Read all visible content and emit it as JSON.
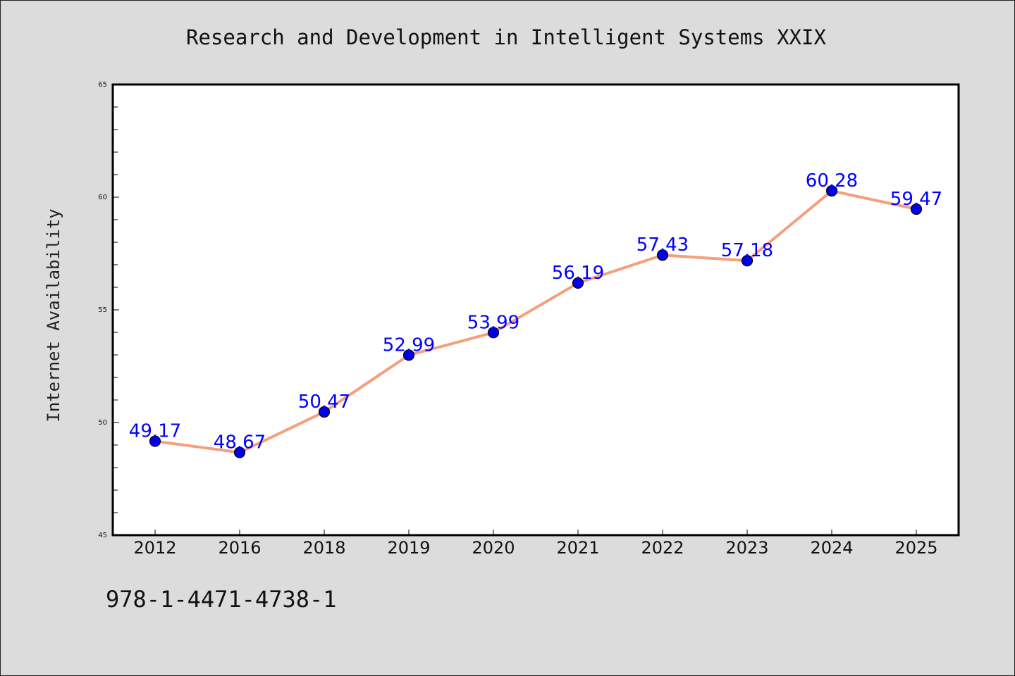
{
  "chart_data": {
    "type": "line",
    "title": "Research and Development in Intelligent Systems XXIX",
    "xlabel": "",
    "ylabel": "Internet Availability",
    "categories": [
      "2012",
      "2016",
      "2018",
      "2019",
      "2020",
      "2021",
      "2022",
      "2023",
      "2024",
      "2025"
    ],
    "values": [
      49.17,
      48.67,
      50.47,
      52.99,
      53.99,
      56.19,
      57.43,
      57.18,
      60.28,
      59.47
    ],
    "data_labels": [
      "49.17",
      "48.67",
      "50.47",
      "52.99",
      "53.99",
      "56.19",
      "57.43",
      "57.18",
      "60.28",
      "59.47"
    ],
    "ylim": [
      45,
      65
    ],
    "yticks": [
      "45",
      "50",
      "55",
      "60",
      "65"
    ],
    "grid": false,
    "legend": "none",
    "colors": {
      "line": "#f4a07c",
      "marker": "#0000ee",
      "label": "#0000ff",
      "plot_background": "#ffffff",
      "page_background": "#dcdcdc"
    }
  },
  "footer": {
    "isbn": "978-1-4471-4738-1"
  }
}
